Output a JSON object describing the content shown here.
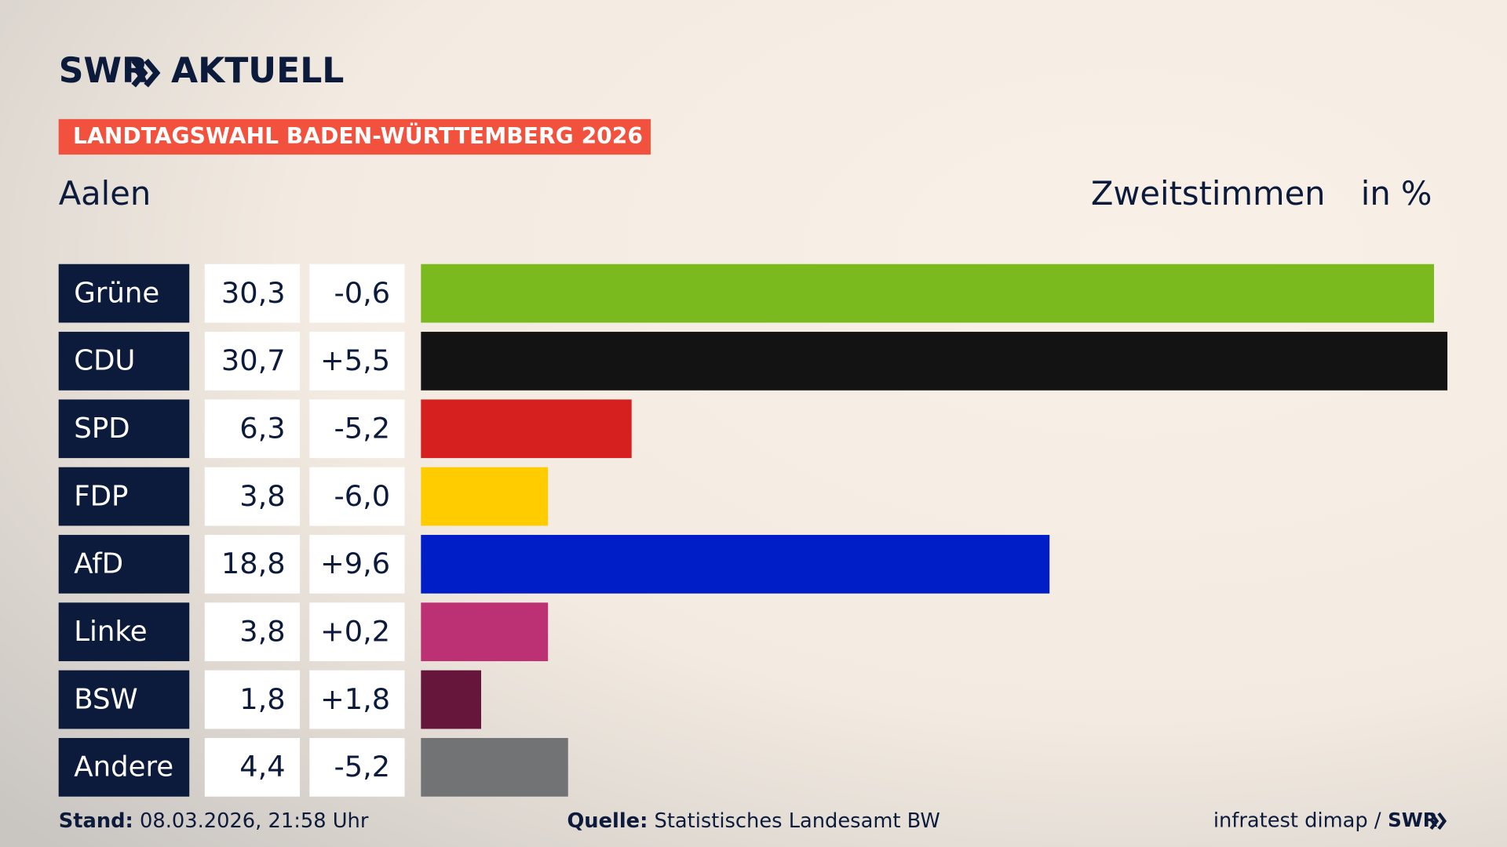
{
  "chart_data": {
    "type": "bar",
    "brand": "SWR",
    "product": "AKTUELL",
    "title": "LANDTAGSWAHL BADEN-WÜRTTEMBERG 2026",
    "subtitle": "Aalen",
    "value_heading": "Zweitstimmen",
    "unit": "in %",
    "categories": [
      "Grüne",
      "CDU",
      "SPD",
      "FDP",
      "AfD",
      "Linke",
      "BSW",
      "Andere"
    ],
    "values": [
      30.3,
      30.7,
      6.3,
      3.8,
      18.8,
      3.8,
      1.8,
      4.4
    ],
    "value_labels": [
      "30,3",
      "30,7",
      "6,3",
      "3,8",
      "18,8",
      "3,8",
      "1,8",
      "4,4"
    ],
    "changes": [
      -0.6,
      5.5,
      -5.2,
      -6.0,
      9.6,
      0.2,
      1.8,
      -5.2
    ],
    "change_labels": [
      "-0,6",
      "+5,5",
      "-5,2",
      "-6,0",
      "+9,6",
      "+0,2",
      "+1,8",
      "-5,2"
    ],
    "colors": [
      "#7aba1e",
      "#131313",
      "#d6201f",
      "#ffcc00",
      "#001ec8",
      "#bc3074",
      "#66163a",
      "#717375"
    ],
    "footer": {
      "stand_label": "Stand:",
      "stand": "08.03.2026, 21:58 Uhr",
      "source_label": "Quelle:",
      "source": "Statistisches Landesamt BW",
      "credit": "infratest dimap /",
      "credit_brand": "SWR"
    }
  }
}
